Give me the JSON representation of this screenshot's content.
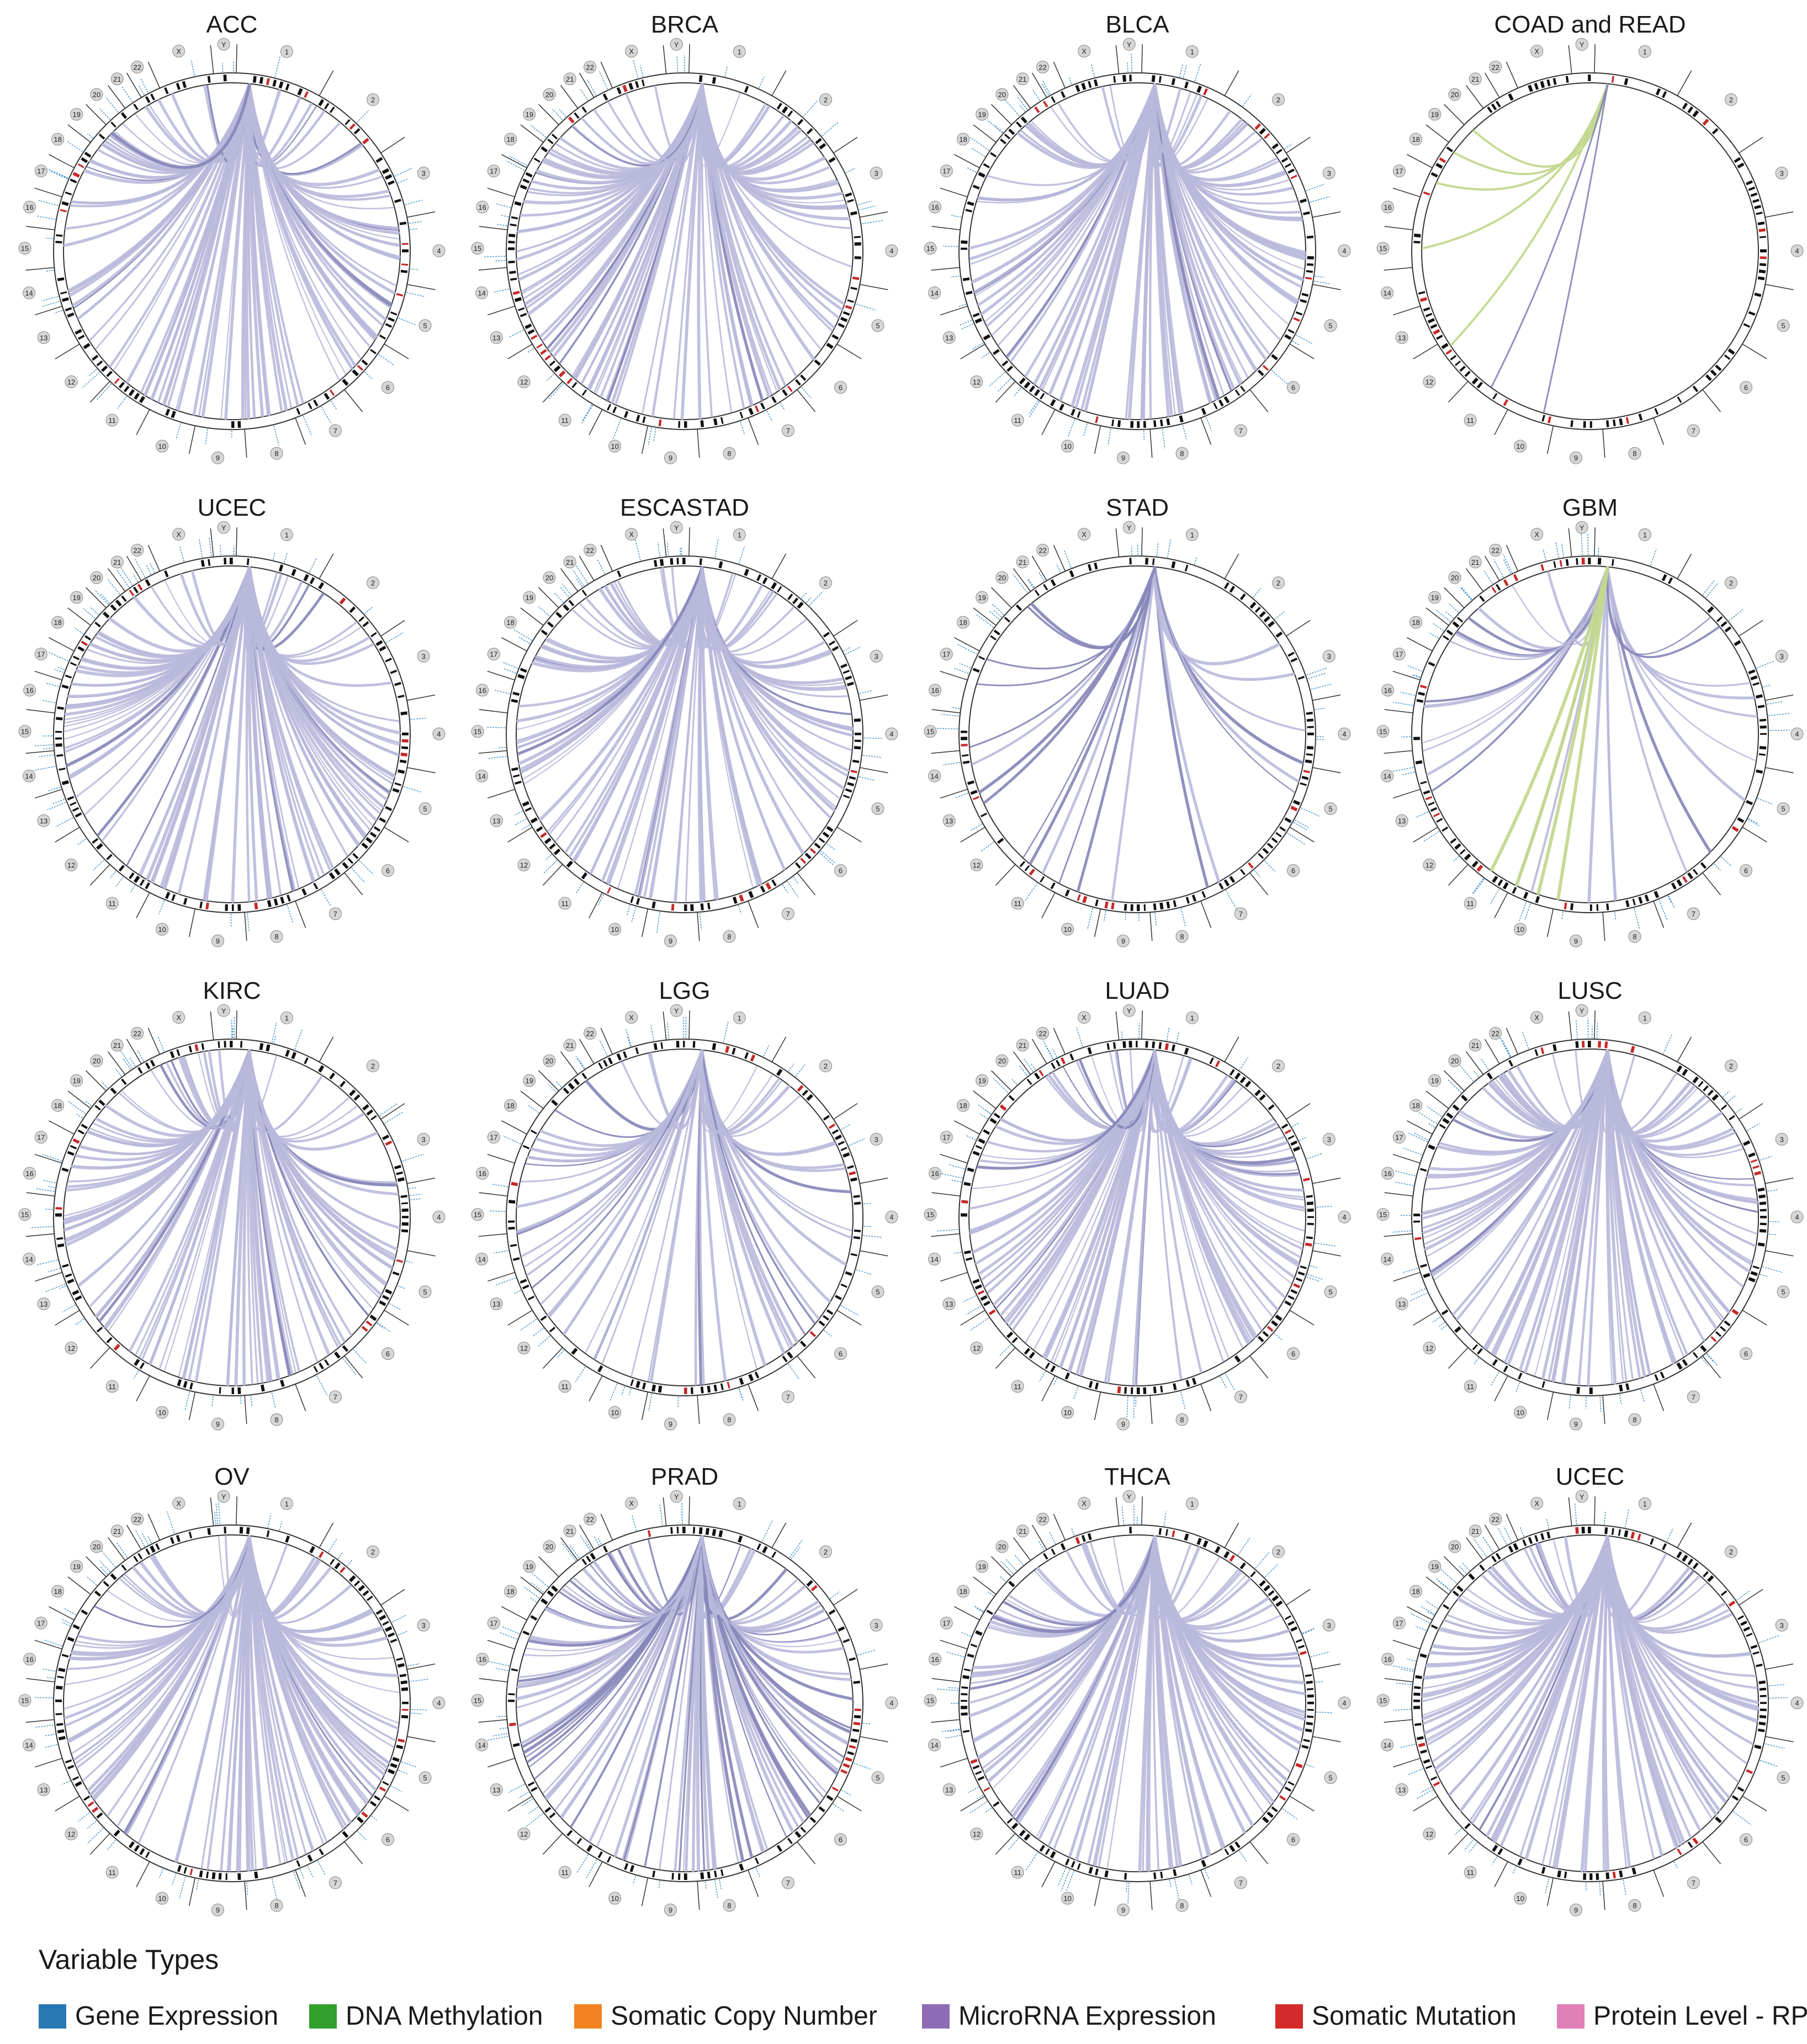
{
  "panels": [
    {
      "title": "ACC",
      "style": "dense"
    },
    {
      "title": "BRCA",
      "style": "dense"
    },
    {
      "title": "BLCA",
      "style": "dense"
    },
    {
      "title": "COAD and READ",
      "style": "sparse-green"
    },
    {
      "title": "UCEC",
      "style": "dense"
    },
    {
      "title": "ESCASTAD",
      "style": "dense"
    },
    {
      "title": "STAD",
      "style": "sparse-dark"
    },
    {
      "title": "GBM",
      "style": "sparse-mixed"
    },
    {
      "title": "KIRC",
      "style": "dense"
    },
    {
      "title": "LGG",
      "style": "medium-dark"
    },
    {
      "title": "LUAD",
      "style": "dense"
    },
    {
      "title": "LUSC",
      "style": "dense"
    },
    {
      "title": "OV",
      "style": "dense"
    },
    {
      "title": "PRAD",
      "style": "dense-dark"
    },
    {
      "title": "THCA",
      "style": "dense"
    },
    {
      "title": "UCEC",
      "style": "dense"
    }
  ],
  "chromosome_labels": [
    "1",
    "2",
    "3",
    "4",
    "5",
    "6",
    "7",
    "8",
    "9",
    "10",
    "11",
    "12",
    "13",
    "14",
    "15",
    "16",
    "17",
    "18",
    "19",
    "20",
    "21",
    "22",
    "X",
    "Y"
  ],
  "legend": {
    "title": "Variable Types",
    "items": [
      {
        "label": "Gene Expression",
        "color": "#2878b5"
      },
      {
        "label": "DNA Methylation",
        "color": "#33a02c"
      },
      {
        "label": "Somatic Copy Number",
        "color": "#f28322"
      },
      {
        "label": "MicroRNA Expression",
        "color": "#8e6bb5"
      },
      {
        "label": "Somatic Mutation",
        "color": "#d42a2a"
      },
      {
        "label": "Protein Level - RPPA",
        "color": "#e07fb8"
      }
    ]
  },
  "colors": {
    "link_light": "#b9b9dc",
    "link_dark": "#8585b8",
    "link_green": "#c3d88f",
    "ideogram_band": "#111111",
    "ideogram_red": "#c62828",
    "spike_blue": "#3f8fc9",
    "label_circle": "#d6d6d6"
  }
}
